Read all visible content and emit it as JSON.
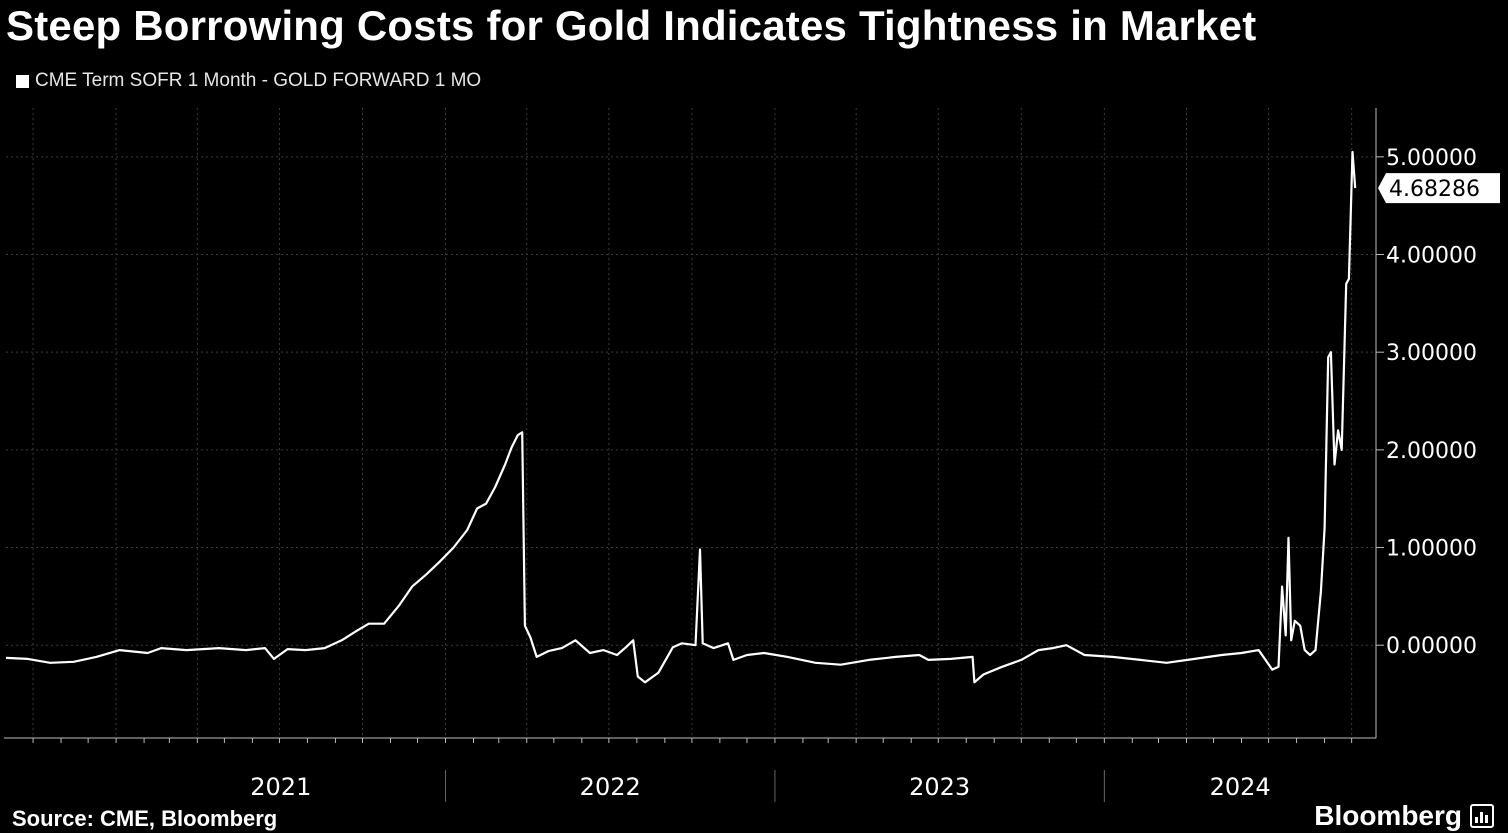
{
  "title": "Steep Borrowing Costs for Gold Indicates Tightness in Market",
  "legend_label": "CME Term SOFR 1 Month - GOLD FORWARD 1 MO",
  "source": "Source: CME, Bloomberg",
  "brand": "Bloomberg",
  "colors": {
    "background": "#000000",
    "line": "#ffffff",
    "grid": "#444444",
    "text": "#ffffff"
  },
  "chart_data": {
    "type": "line",
    "title": "Steep Borrowing Costs for Gold Indicates Tightness in Market",
    "xlabel": "",
    "ylabel": "",
    "ylim": [
      -0.95,
      5.5
    ],
    "xlim": [
      "2020-09-01",
      "2024-10-28"
    ],
    "grid": true,
    "legend_position": "top-left",
    "y_ticks": [
      0,
      1,
      2,
      3,
      4,
      5
    ],
    "y_tick_labels": [
      "0.00000",
      "1.00000",
      "2.00000",
      "3.00000",
      "4.00000",
      "5.00000"
    ],
    "x_tick_labels": [
      "2021",
      "2022",
      "2023",
      "2024"
    ],
    "last_value_label": "4.68286",
    "series": [
      {
        "name": "CME Term SOFR 1 Month - GOLD FORWARD 1 MO",
        "points": [
          [
            "2020-09-01",
            -0.13
          ],
          [
            "2020-09-25",
            -0.14
          ],
          [
            "2020-10-20",
            -0.18
          ],
          [
            "2020-11-15",
            -0.17
          ],
          [
            "2020-12-10",
            -0.12
          ],
          [
            "2021-01-05",
            -0.05
          ],
          [
            "2021-02-05",
            -0.08
          ],
          [
            "2021-02-20",
            -0.03
          ],
          [
            "2021-03-20",
            -0.05
          ],
          [
            "2021-04-25",
            -0.03
          ],
          [
            "2021-05-25",
            -0.05
          ],
          [
            "2021-06-15",
            -0.03
          ],
          [
            "2021-06-25",
            -0.14
          ],
          [
            "2021-07-10",
            -0.04
          ],
          [
            "2021-07-30",
            -0.05
          ],
          [
            "2021-08-20",
            -0.03
          ],
          [
            "2021-09-08",
            0.05
          ],
          [
            "2021-09-25",
            0.15
          ],
          [
            "2021-10-08",
            0.22
          ],
          [
            "2021-10-25",
            0.22
          ],
          [
            "2021-11-10",
            0.4
          ],
          [
            "2021-11-25",
            0.6
          ],
          [
            "2021-12-10",
            0.72
          ],
          [
            "2021-12-25",
            0.85
          ],
          [
            "2022-01-10",
            1.0
          ],
          [
            "2022-01-25",
            1.18
          ],
          [
            "2022-02-05",
            1.4
          ],
          [
            "2022-02-15",
            1.45
          ],
          [
            "2022-02-25",
            1.62
          ],
          [
            "2022-03-08",
            1.85
          ],
          [
            "2022-03-15",
            2.02
          ],
          [
            "2022-03-22",
            2.15
          ],
          [
            "2022-03-27",
            2.18
          ],
          [
            "2022-03-30",
            0.2
          ],
          [
            "2022-04-05",
            0.08
          ],
          [
            "2022-04-12",
            -0.12
          ],
          [
            "2022-04-25",
            -0.06
          ],
          [
            "2022-05-10",
            -0.03
          ],
          [
            "2022-05-25",
            0.05
          ],
          [
            "2022-06-10",
            -0.08
          ],
          [
            "2022-06-25",
            -0.05
          ],
          [
            "2022-07-10",
            -0.1
          ],
          [
            "2022-07-20",
            -0.02
          ],
          [
            "2022-07-28",
            0.05
          ],
          [
            "2022-08-02",
            -0.32
          ],
          [
            "2022-08-10",
            -0.38
          ],
          [
            "2022-08-25",
            -0.28
          ],
          [
            "2022-09-10",
            -0.02
          ],
          [
            "2022-09-20",
            0.02
          ],
          [
            "2022-10-05",
            0.0
          ],
          [
            "2022-10-10",
            0.98
          ],
          [
            "2022-10-13",
            0.02
          ],
          [
            "2022-10-25",
            -0.03
          ],
          [
            "2022-11-10",
            0.02
          ],
          [
            "2022-11-16",
            -0.15
          ],
          [
            "2022-12-01",
            -0.1
          ],
          [
            "2022-12-20",
            -0.08
          ],
          [
            "2023-01-15",
            -0.12
          ],
          [
            "2023-02-15",
            -0.18
          ],
          [
            "2023-03-15",
            -0.2
          ],
          [
            "2023-04-15",
            -0.15
          ],
          [
            "2023-05-15",
            -0.12
          ],
          [
            "2023-06-10",
            -0.1
          ],
          [
            "2023-06-20",
            -0.15
          ],
          [
            "2023-07-15",
            -0.14
          ],
          [
            "2023-08-08",
            -0.12
          ],
          [
            "2023-08-10",
            -0.38
          ],
          [
            "2023-08-20",
            -0.3
          ],
          [
            "2023-09-10",
            -0.22
          ],
          [
            "2023-10-01",
            -0.15
          ],
          [
            "2023-10-20",
            -0.05
          ],
          [
            "2023-11-05",
            -0.03
          ],
          [
            "2023-11-20",
            0.0
          ],
          [
            "2023-12-10",
            -0.1
          ],
          [
            "2024-01-10",
            -0.12
          ],
          [
            "2024-02-10",
            -0.15
          ],
          [
            "2024-03-10",
            -0.18
          ],
          [
            "2024-04-10",
            -0.14
          ],
          [
            "2024-05-10",
            -0.1
          ],
          [
            "2024-06-01",
            -0.08
          ],
          [
            "2024-06-20",
            -0.05
          ],
          [
            "2024-07-05",
            -0.25
          ],
          [
            "2024-07-12",
            -0.22
          ],
          [
            "2024-07-16",
            0.6
          ],
          [
            "2024-07-20",
            0.1
          ],
          [
            "2024-07-23",
            1.1
          ],
          [
            "2024-07-26",
            0.05
          ],
          [
            "2024-07-30",
            0.25
          ],
          [
            "2024-08-05",
            0.2
          ],
          [
            "2024-08-10",
            -0.05
          ],
          [
            "2024-08-16",
            -0.1
          ],
          [
            "2024-08-22",
            -0.05
          ],
          [
            "2024-08-28",
            0.55
          ],
          [
            "2024-09-01",
            1.2
          ],
          [
            "2024-09-05",
            2.95
          ],
          [
            "2024-09-08",
            3.0
          ],
          [
            "2024-09-12",
            1.85
          ],
          [
            "2024-09-16",
            2.2
          ],
          [
            "2024-09-20",
            2.0
          ],
          [
            "2024-09-25",
            3.7
          ],
          [
            "2024-09-28",
            3.75
          ],
          [
            "2024-10-02",
            5.05
          ],
          [
            "2024-10-05",
            4.68
          ]
        ]
      }
    ]
  }
}
